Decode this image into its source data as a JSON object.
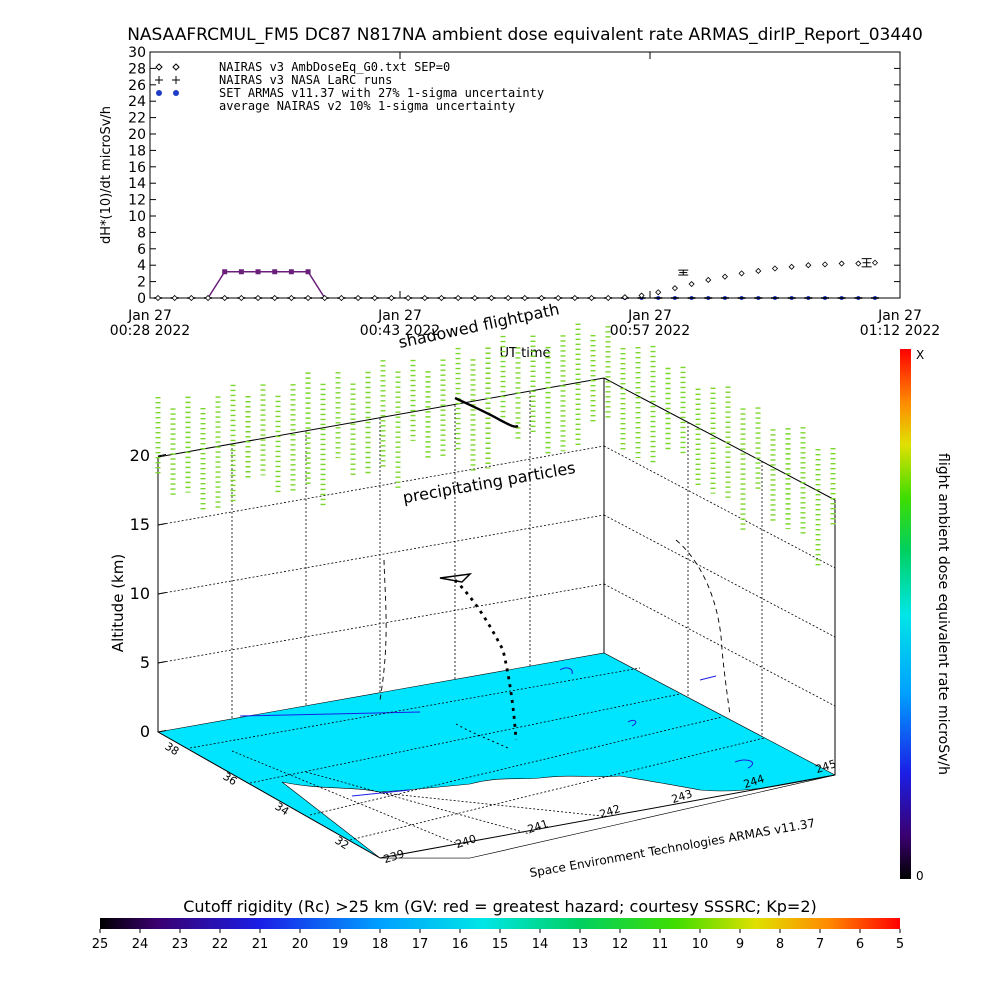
{
  "title": "NASAAFRCMUL_FM5 DC87 N817NA ambient dose equivalent rate ARMAS_dirIP_Report_03440",
  "colors": {
    "nairas_v3": "#000000",
    "nairas_larc": "#000000",
    "set_armas": "#1e3cc8",
    "nairas_v2": "#6a1f7a",
    "fill_3d": "#00e5ff",
    "precip": "#7bd62b"
  },
  "chart_data": [
    {
      "type": "line",
      "ylabel": "dH*(10)/dt microSv/h",
      "xlabel": "UT time",
      "ylim": [
        0,
        30
      ],
      "yticks": [
        "0",
        "2",
        "4",
        "6",
        "8",
        "10",
        "12",
        "14",
        "16",
        "18",
        "20",
        "22",
        "24",
        "26",
        "28",
        "30"
      ],
      "xticks": [
        {
          "l1": "Jan 27",
          "l2": "00:28 2022"
        },
        {
          "l1": "Jan 27",
          "l2": "00:43 2022"
        },
        {
          "l1": "Jan 27",
          "l2": "00:57 2022"
        },
        {
          "l1": "Jan 27",
          "l2": "01:12 2022"
        }
      ],
      "legend_position": "top-left",
      "series": [
        {
          "name": "NAIRAS v3 AmbDoseEq_G0.txt SEP=0",
          "symbol": "diamond",
          "x": [
            0,
            1,
            2,
            3,
            4,
            5,
            6,
            7,
            8,
            9,
            10,
            11,
            12,
            13,
            14,
            15,
            16,
            17,
            18,
            19,
            20,
            21,
            22,
            23,
            24,
            25,
            26,
            27,
            28,
            29,
            30,
            31,
            32,
            33,
            34,
            35,
            36,
            37,
            38,
            39,
            40,
            41,
            42,
            43
          ],
          "y": [
            0,
            0,
            0,
            0,
            0,
            0,
            0,
            0,
            0,
            0,
            0,
            0,
            0,
            0,
            0,
            0,
            0,
            0,
            0,
            0,
            0,
            0,
            0,
            0,
            0,
            0,
            0,
            0,
            0.1,
            0.3,
            0.7,
            1.2,
            1.7,
            2.2,
            2.6,
            3.0,
            3.3,
            3.6,
            3.8,
            4.0,
            4.1,
            4.2,
            4.2,
            4.3
          ]
        },
        {
          "name": "NAIRAS v3 NASA LaRC runs",
          "symbol": "plus",
          "x": [
            31.5,
            42.5
          ],
          "y": [
            3.1,
            4.3
          ],
          "err": [
            0.3,
            0.5
          ]
        },
        {
          "name": "SET ARMAS v11.37 with 27% 1-sigma uncertainty",
          "symbol": "dot",
          "x": [
            0,
            1,
            2,
            3,
            4,
            5,
            6,
            7,
            8,
            9,
            10,
            11,
            12,
            13,
            14,
            15,
            16,
            17,
            18,
            19,
            20,
            21,
            22,
            23,
            24,
            25,
            26,
            27,
            28,
            29,
            30,
            31,
            32,
            33,
            34,
            35,
            36,
            37,
            38,
            39,
            40,
            41,
            42,
            43
          ],
          "y": [
            0,
            0,
            0,
            0,
            0,
            0,
            0,
            0,
            0,
            0,
            0,
            0,
            0,
            0,
            0,
            0,
            0,
            0,
            0,
            0,
            0,
            0,
            0,
            0,
            0,
            0,
            0,
            0,
            0,
            0,
            0,
            0,
            0,
            0,
            0,
            0,
            0,
            0,
            0,
            0,
            0,
            0,
            0,
            0
          ]
        },
        {
          "name": "average NAIRAS v2 10% 1-sigma uncertainty",
          "symbol": "line",
          "x": [
            3,
            4,
            5,
            6,
            7,
            8,
            9,
            10
          ],
          "y": [
            0,
            3.2,
            3.2,
            3.2,
            3.2,
            3.2,
            3.2,
            0
          ]
        }
      ]
    },
    {
      "type": "3d-flightpath",
      "zlabel": "Altitude (km)",
      "zticks": [
        "0",
        "5",
        "10",
        "15",
        "20"
      ],
      "lon_ticks": [
        "239",
        "240",
        "241",
        "242",
        "243",
        "244",
        "245"
      ],
      "lat_ticks": [
        "32",
        "34",
        "36",
        "38"
      ],
      "annotations": [
        "shadowed flightpath",
        "precipitating particles"
      ],
      "credit": "Space Environment Technologies ARMAS v11.37",
      "colorbar": {
        "label": "flight ambient dose equivalent rate microSv/h",
        "min_label": "0",
        "max_label": "X"
      }
    },
    {
      "type": "colorbar",
      "label": "Cutoff rigidity (Rc) >25 km (GV: red = greatest hazard; courtesy SSSRC; Kp=2)",
      "ticks": [
        "25",
        "24",
        "23",
        "22",
        "21",
        "20",
        "19",
        "18",
        "17",
        "16",
        "15",
        "14",
        "13",
        "12",
        "11",
        "10",
        "9",
        "8",
        "7",
        "6",
        "5"
      ]
    }
  ]
}
